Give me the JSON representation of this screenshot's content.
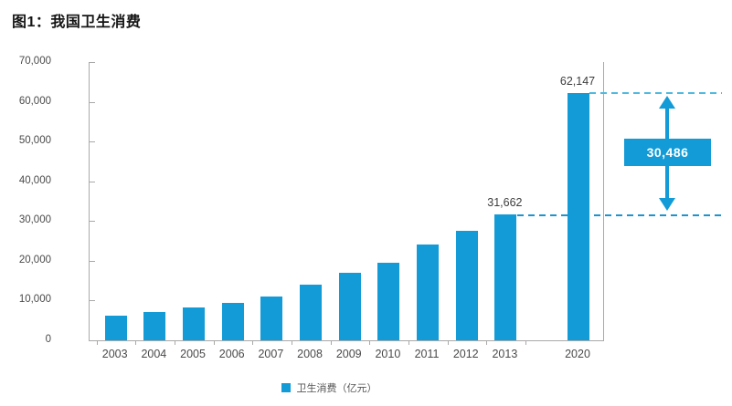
{
  "title": "图1：我国卫生消费",
  "colors": {
    "bar": "#129BD7",
    "dash_upper": "#4fb9df",
    "dash_lower": "#1f93ce",
    "annotation_box": "#129BD7",
    "annotation_text": "#ffffff",
    "axis": "#a9a9a9"
  },
  "chart_data": {
    "type": "bar",
    "title": "图1：我国卫生消费",
    "xlabel": "",
    "ylabel": "",
    "ylim": [
      0,
      70000
    ],
    "ytick_step": 10000,
    "yticks": [
      "70,000",
      "60,000",
      "50,000",
      "40,000",
      "30,000",
      "20,000",
      "10,000",
      "0"
    ],
    "grid": false,
    "categories": [
      "2003",
      "2004",
      "2005",
      "2006",
      "2007",
      "2008",
      "2009",
      "2010",
      "2011",
      "2012",
      "2013",
      "2020"
    ],
    "values": [
      6200,
      7100,
      8200,
      9400,
      11000,
      14000,
      17100,
      19500,
      24100,
      27600,
      31662,
      62147
    ],
    "point_labels": [
      "",
      "",
      "",
      "",
      "",
      "",
      "",
      "",
      "",
      "",
      "31,662",
      "62,147"
    ],
    "legend": "卫生消费（亿元）",
    "legend_position": "bottom",
    "annotation": {
      "difference_label": "30,486",
      "from_category": "2013",
      "to_category": "2020",
      "style": "two dashed reference lines at 31,662 and 62,147 with vertical double-headed arrow and solid label box"
    }
  }
}
